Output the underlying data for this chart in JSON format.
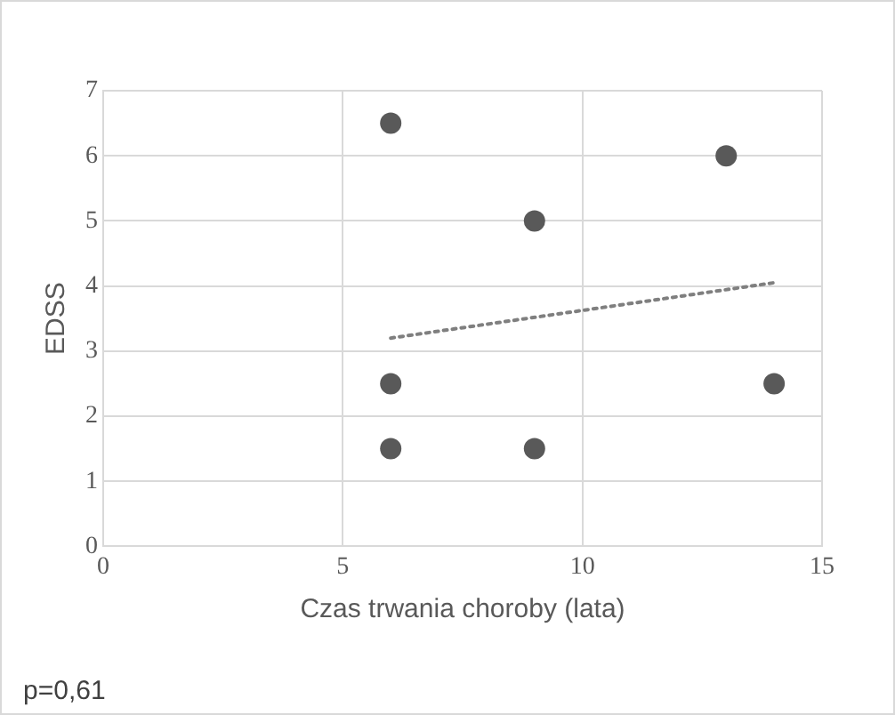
{
  "chart_data": {
    "type": "scatter",
    "xlabel": "Czas trwania choroby (lata)",
    "ylabel": "EDSS",
    "series": [
      {
        "color": "#595959",
        "marker": "circle",
        "x": [
          6,
          9,
          13,
          6,
          14,
          6,
          9
        ],
        "values": [
          6.5,
          5,
          6,
          2.5,
          2.5,
          1.5,
          1.5
        ]
      },
      {
        "type": "line",
        "color": "#7f7f7f",
        "marker": "none",
        "line_style": "dotted",
        "x": [
          6,
          14
        ],
        "values": [
          3.2,
          4.05
        ]
      }
    ],
    "xlim": [
      0,
      15
    ],
    "xticks": [
      0,
      5,
      10,
      15
    ],
    "ylim": [
      0,
      7
    ],
    "yticks": [
      0,
      1,
      2,
      3,
      4,
      5,
      6,
      7
    ],
    "grid": true,
    "legend": false,
    "annotations": [
      "p=0,61"
    ]
  }
}
